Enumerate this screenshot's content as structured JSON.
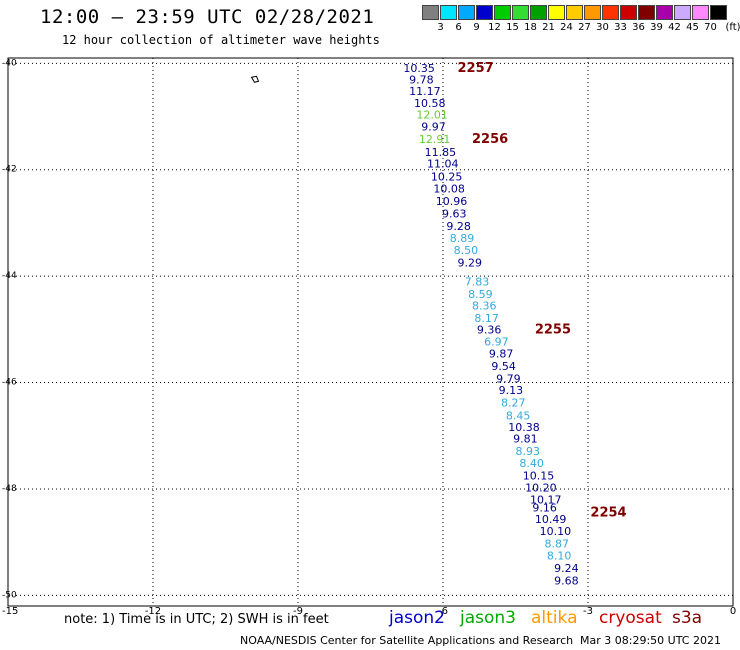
{
  "title": "12:00 – 23:59 UTC 02/28/2021",
  "subtitle": "12 hour collection of altimeter wave heights",
  "colorbar": {
    "unit_label": "(ft)",
    "ticks": [
      "3",
      "6",
      "9",
      "12",
      "15",
      "18",
      "21",
      "24",
      "27",
      "30",
      "33",
      "36",
      "39",
      "42",
      "45",
      "70"
    ],
    "colors": [
      "#808080",
      "#00e5ff",
      "#00aaff",
      "#0000cc",
      "#00cc00",
      "#33dd33",
      "#00a000",
      "#ffff00",
      "#ffcc00",
      "#ff9900",
      "#ff3300",
      "#cc0000",
      "#800000",
      "#aa00aa",
      "#ccaaff",
      "#ff88ff",
      "#000000"
    ]
  },
  "map": {
    "lon_range": [
      -15,
      0
    ],
    "lat_range": [
      -50.2,
      -39.9
    ],
    "lon_ticks": [
      {
        "value": -12,
        "label": "-12"
      },
      {
        "value": -9,
        "label": "-9"
      },
      {
        "value": -6,
        "label": "-6"
      },
      {
        "value": -3,
        "label": "-3"
      },
      {
        "value": 0,
        "label": "0"
      }
    ],
    "lat_ticks": [
      {
        "value": -40,
        "label": "-40"
      },
      {
        "value": -42,
        "label": "-42"
      },
      {
        "value": -44,
        "label": "-44"
      },
      {
        "value": -46,
        "label": "-46"
      },
      {
        "value": -48,
        "label": "-48"
      },
      {
        "value": -50,
        "label": "-50"
      }
    ],
    "corner_label": "-15",
    "island": {
      "lon": -9.9,
      "lat": -40.3
    },
    "satellite_colors": {
      "jason2": "#0000cc",
      "jason3": "#00aa00",
      "altika": "#ff9900",
      "cryosat": "#cc0000",
      "s3a": "#800000"
    },
    "heights": [
      {
        "lon": -6.82,
        "lat": -40.16,
        "text": "10.35",
        "color": "#00008b"
      },
      {
        "lon": -6.7,
        "lat": -40.38,
        "text": "9.78",
        "color": "#00008b"
      },
      {
        "lon": -6.7,
        "lat": -40.6,
        "text": "11.17",
        "color": "#00008b"
      },
      {
        "lon": -6.6,
        "lat": -40.82,
        "text": "10.58",
        "color": "#00008b"
      },
      {
        "lon": -6.55,
        "lat": -41.04,
        "text": "12.01",
        "color": "#66cc33"
      },
      {
        "lon": -6.45,
        "lat": -41.26,
        "text": "9.97",
        "color": "#00008b"
      },
      {
        "lon": -6.5,
        "lat": -41.5,
        "text": "12.91",
        "color": "#66cc33"
      },
      {
        "lon": -6.38,
        "lat": -41.74,
        "text": "11.85",
        "color": "#00008b"
      },
      {
        "lon": -6.33,
        "lat": -41.96,
        "text": "11.04",
        "color": "#00008b"
      },
      {
        "lon": -6.25,
        "lat": -42.2,
        "text": "10.25",
        "color": "#00008b"
      },
      {
        "lon": -6.2,
        "lat": -42.43,
        "text": "10.08",
        "color": "#00008b"
      },
      {
        "lon": -6.15,
        "lat": -42.66,
        "text": "10.96",
        "color": "#00008b"
      },
      {
        "lon": -6.02,
        "lat": -42.9,
        "text": "9.63",
        "color": "#00008b"
      },
      {
        "lon": -5.93,
        "lat": -43.13,
        "text": "9.28",
        "color": "#00008b"
      },
      {
        "lon": -5.86,
        "lat": -43.36,
        "text": "8.89",
        "color": "#33aadd"
      },
      {
        "lon": -5.78,
        "lat": -43.58,
        "text": "8.50",
        "color": "#33aadd"
      },
      {
        "lon": -5.7,
        "lat": -43.82,
        "text": "9.29",
        "color": "#00008b"
      },
      {
        "lon": -5.55,
        "lat": -44.18,
        "text": "7.83",
        "color": "#33aadd"
      },
      {
        "lon": -5.48,
        "lat": -44.41,
        "text": "8.59",
        "color": "#33aadd"
      },
      {
        "lon": -5.4,
        "lat": -44.63,
        "text": "8.36",
        "color": "#33aadd"
      },
      {
        "lon": -5.35,
        "lat": -44.86,
        "text": "8.17",
        "color": "#33aadd"
      },
      {
        "lon": -5.3,
        "lat": -45.08,
        "text": "9.36",
        "color": "#00008b"
      },
      {
        "lon": -5.15,
        "lat": -45.3,
        "text": "6.97",
        "color": "#33aadd"
      },
      {
        "lon": -5.05,
        "lat": -45.53,
        "text": "9.87",
        "color": "#00008b"
      },
      {
        "lon": -5.0,
        "lat": -45.76,
        "text": "9.54",
        "color": "#00008b"
      },
      {
        "lon": -4.9,
        "lat": -46.0,
        "text": "9.79",
        "color": "#00008b"
      },
      {
        "lon": -4.85,
        "lat": -46.22,
        "text": "9.13",
        "color": "#00008b"
      },
      {
        "lon": -4.8,
        "lat": -46.45,
        "text": "8.27",
        "color": "#33aadd"
      },
      {
        "lon": -4.7,
        "lat": -46.69,
        "text": "8.45",
        "color": "#33aadd"
      },
      {
        "lon": -4.65,
        "lat": -46.91,
        "text": "10.38",
        "color": "#00008b"
      },
      {
        "lon": -4.55,
        "lat": -47.13,
        "text": "9.81",
        "color": "#00008b"
      },
      {
        "lon": -4.5,
        "lat": -47.36,
        "text": "8.93",
        "color": "#33aadd"
      },
      {
        "lon": -4.42,
        "lat": -47.59,
        "text": "8.40",
        "color": "#33aadd"
      },
      {
        "lon": -4.35,
        "lat": -47.82,
        "text": "10.15",
        "color": "#00008b"
      },
      {
        "lon": -4.3,
        "lat": -48.05,
        "text": "10.20",
        "color": "#00008b"
      },
      {
        "lon": -4.2,
        "lat": -48.27,
        "text": "10.17",
        "color": "#00008b"
      },
      {
        "lon": -4.15,
        "lat": -48.42,
        "text": "9.16",
        "color": "#00008b"
      },
      {
        "lon": -4.1,
        "lat": -48.64,
        "text": "10.49",
        "color": "#00008b"
      },
      {
        "lon": -4.0,
        "lat": -48.87,
        "text": "10.10",
        "color": "#00008b"
      },
      {
        "lon": -3.9,
        "lat": -49.1,
        "text": "8.87",
        "color": "#33aadd"
      },
      {
        "lon": -3.85,
        "lat": -49.33,
        "text": "8.10",
        "color": "#33aadd"
      },
      {
        "lon": -3.7,
        "lat": -49.56,
        "text": "9.24",
        "color": "#00008b"
      },
      {
        "lon": -3.7,
        "lat": -49.8,
        "text": "9.68",
        "color": "#00008b"
      }
    ],
    "time_labels": [
      {
        "lon": -5.7,
        "lat": -40.16,
        "text": "2257"
      },
      {
        "lon": -5.4,
        "lat": -41.5,
        "text": "2256"
      },
      {
        "lon": -4.1,
        "lat": -45.08,
        "text": "2255"
      },
      {
        "lon": -2.95,
        "lat": -48.52,
        "text": "2254"
      }
    ]
  },
  "note": "note: 1) Time is in UTC; 2) SWH is in feet",
  "legend": [
    {
      "name": "jason2",
      "color": "#0000cc"
    },
    {
      "name": "jason3",
      "color": "#00aa00"
    },
    {
      "name": "altika",
      "color": "#ff9900"
    },
    {
      "name": "cryosat",
      "color": "#cc0000"
    },
    {
      "name": "s3a",
      "color": "#800000"
    }
  ],
  "credit": "NOAA/NESDIS Center for Satellite Applications and Research",
  "timestamp": "Mar  3 08:29:50 UTC 2021"
}
